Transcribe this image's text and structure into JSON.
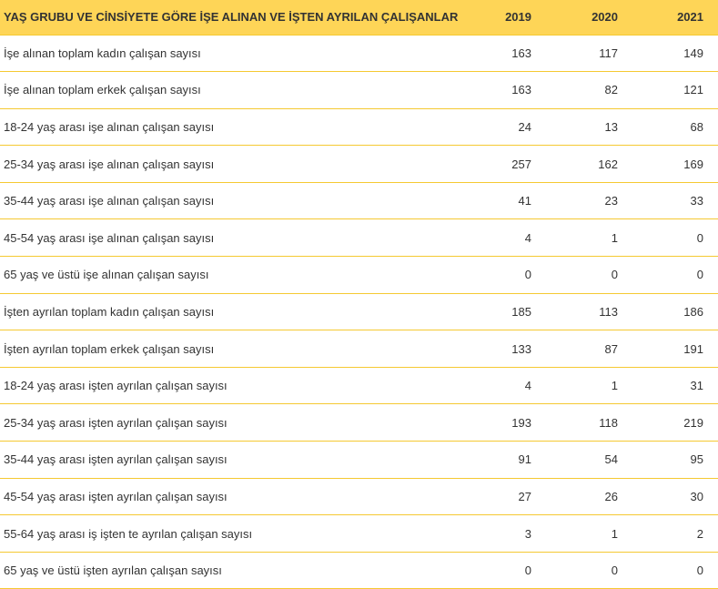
{
  "colors": {
    "header_bg": "#fed557",
    "row_divider": "#f5c932",
    "text": "#333333"
  },
  "table": {
    "columns": [
      "YAŞ GRUBU VE CİNSİYETE GÖRE İŞE ALINAN VE İŞTEN AYRILAN ÇALIŞANLAR",
      "2019",
      "2020",
      "2021"
    ],
    "rows": [
      {
        "label": "İşe alınan toplam kadın çalışan sayısı",
        "v2019": "163",
        "v2020": "117",
        "v2021": "149"
      },
      {
        "label": "İşe alınan toplam erkek çalışan sayısı",
        "v2019": "163",
        "v2020": "82",
        "v2021": "121"
      },
      {
        "label": "18-24 yaş arası işe alınan çalışan sayısı",
        "v2019": "24",
        "v2020": "13",
        "v2021": "68"
      },
      {
        "label": "25-34 yaş arası işe alınan çalışan sayısı",
        "v2019": "257",
        "v2020": "162",
        "v2021": "169"
      },
      {
        "label": "35-44 yaş arası işe alınan çalışan sayısı",
        "v2019": "41",
        "v2020": "23",
        "v2021": "33"
      },
      {
        "label": "45-54 yaş arası işe alınan çalışan sayısı",
        "v2019": "4",
        "v2020": "1",
        "v2021": "0"
      },
      {
        "label": "65 yaş ve üstü işe alınan çalışan sayısı",
        "v2019": "0",
        "v2020": "0",
        "v2021": "0"
      },
      {
        "label": "İşten ayrılan toplam kadın çalışan sayısı",
        "v2019": "185",
        "v2020": "113",
        "v2021": "186"
      },
      {
        "label": "İşten ayrılan toplam erkek çalışan sayısı",
        "v2019": "133",
        "v2020": "87",
        "v2021": "191"
      },
      {
        "label": "18-24 yaş arası işten ayrılan çalışan sayısı",
        "v2019": "4",
        "v2020": "1",
        "v2021": "31"
      },
      {
        "label": "25-34 yaş arası işten ayrılan çalışan sayısı",
        "v2019": "193",
        "v2020": "118",
        "v2021": "219"
      },
      {
        "label": "35-44 yaş arası işten ayrılan çalışan sayısı",
        "v2019": "91",
        "v2020": "54",
        "v2021": "95"
      },
      {
        "label": "45-54 yaş arası işten ayrılan çalışan sayısı",
        "v2019": "27",
        "v2020": "26",
        "v2021": "30"
      },
      {
        "label": "55-64 yaş arası iş işten te ayrılan çalışan sayısı",
        "v2019": "3",
        "v2020": "1",
        "v2021": "2"
      },
      {
        "label": "65 yaş ve üstü işten ayrılan çalışan sayısı",
        "v2019": "0",
        "v2020": "0",
        "v2021": "0"
      }
    ]
  }
}
